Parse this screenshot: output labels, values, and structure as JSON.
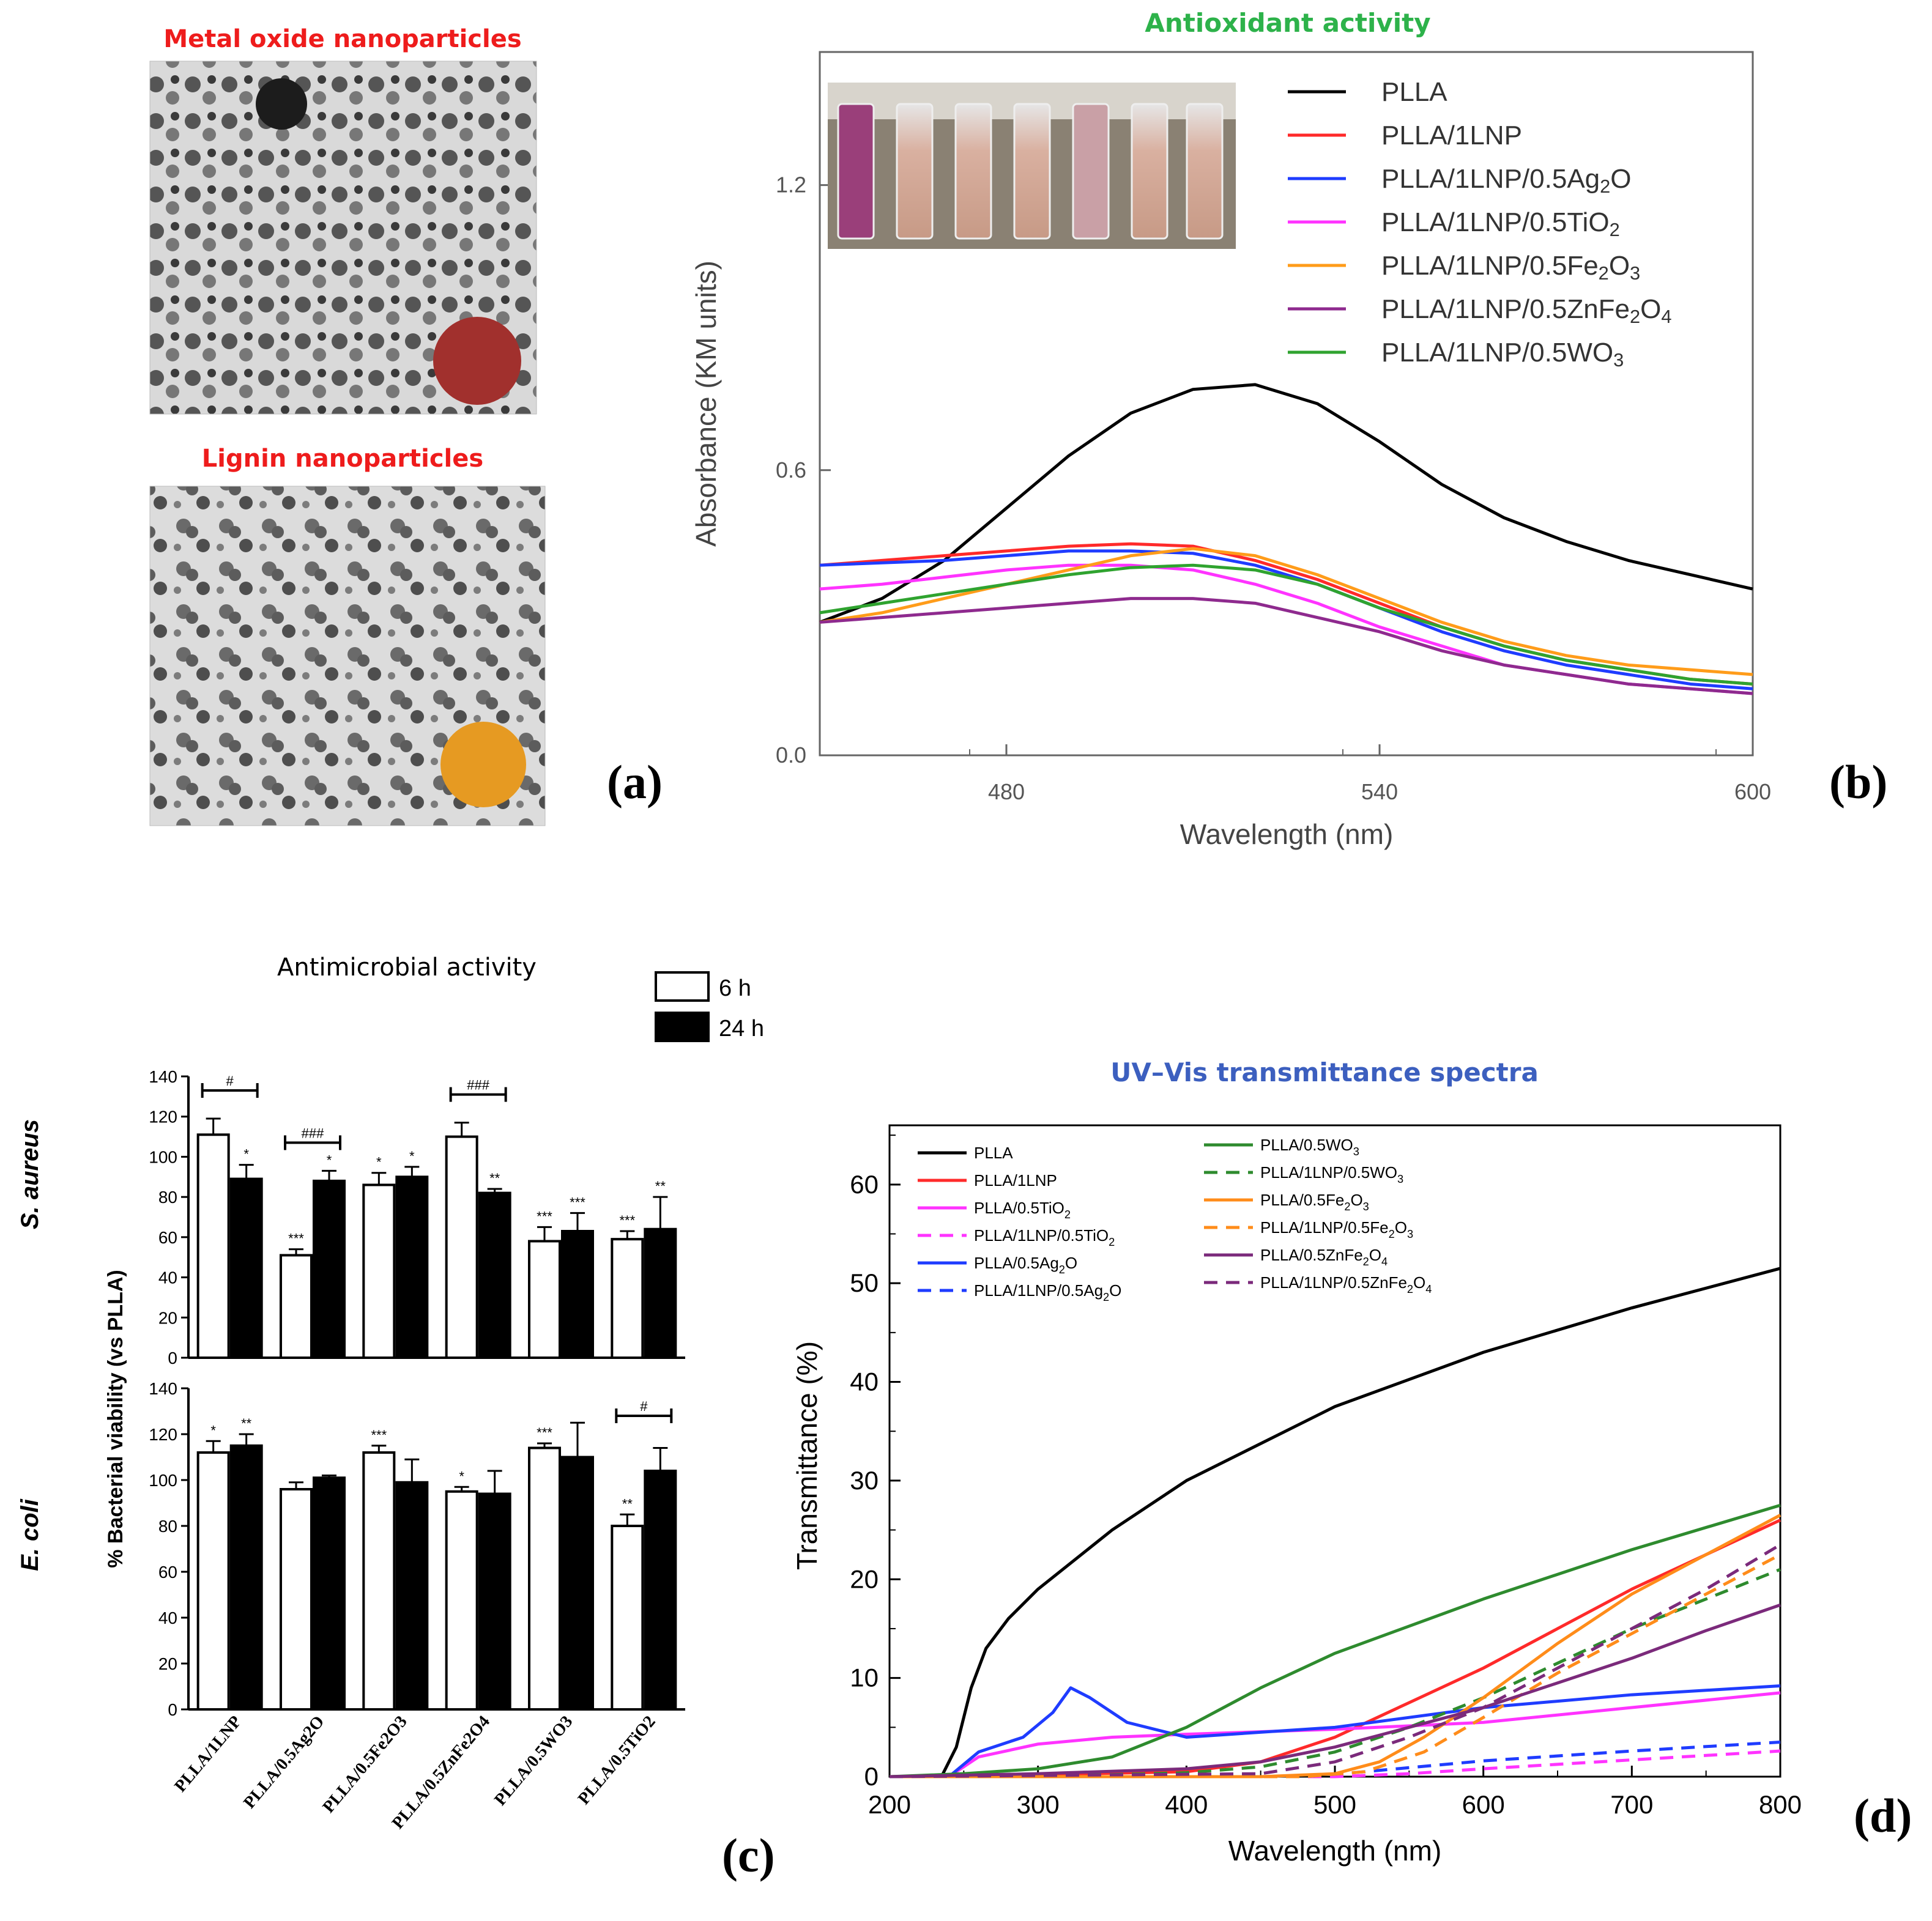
{
  "panel_a": {
    "letter": "(a)",
    "top_title": "Metal oxide nanoparticles",
    "bottom_title": "Lignin nanoparticles",
    "top_dot_color": "#a1302d",
    "bottom_dot_color": "#e69a22"
  },
  "chart_data": [
    {
      "id": "b",
      "type": "line",
      "letter": "(b)",
      "title": "Antioxidant activity",
      "xlabel": "Wavelength (nm)",
      "ylabel": "Absorbance (KM units)",
      "xlim": [
        450,
        600
      ],
      "ylim": [
        0.0,
        1.48
      ],
      "xticks": [
        "480",
        "540",
        "600"
      ],
      "xtick_values": [
        480,
        540,
        600
      ],
      "yticks": [
        "0.0",
        "0.6",
        "1.2"
      ],
      "ytick_values": [
        0.0,
        0.6,
        1.2
      ],
      "legend_position": "top-right",
      "inset": "cuvette photo",
      "x": [
        450,
        460,
        470,
        480,
        490,
        500,
        510,
        520,
        530,
        540,
        550,
        560,
        570,
        580,
        590,
        600
      ],
      "series": [
        {
          "name": "PLLA",
          "label": "PLLA",
          "sub": "",
          "tail": "",
          "color": "#000000",
          "values": [
            0.28,
            0.33,
            0.41,
            0.52,
            0.63,
            0.72,
            0.77,
            0.78,
            0.74,
            0.66,
            0.57,
            0.5,
            0.45,
            0.41,
            0.38,
            0.35
          ]
        },
        {
          "name": "PLLA/1LNP",
          "label": "PLLA/1LNP",
          "sub": "",
          "tail": "",
          "color": "#ff2a2a",
          "values": [
            0.4,
            0.41,
            0.42,
            0.43,
            0.44,
            0.445,
            0.44,
            0.41,
            0.37,
            0.32,
            0.27,
            0.23,
            0.2,
            0.18,
            0.16,
            0.15
          ]
        },
        {
          "name": "PLLA/1LNP/0.5Ag2O",
          "label": "PLLA/1LNP/0.5Ag",
          "sub": "2",
          "tail": "O",
          "color": "#1f3cff",
          "values": [
            0.4,
            0.405,
            0.41,
            0.42,
            0.43,
            0.43,
            0.425,
            0.4,
            0.36,
            0.31,
            0.26,
            0.22,
            0.19,
            0.17,
            0.15,
            0.14
          ]
        },
        {
          "name": "PLLA/1LNP/0.5TiO2",
          "label": "PLLA/1LNP/0.5TiO",
          "sub": "2",
          "tail": "",
          "color": "#ff33ff",
          "values": [
            0.35,
            0.36,
            0.375,
            0.39,
            0.4,
            0.4,
            0.39,
            0.36,
            0.32,
            0.27,
            0.23,
            0.19,
            0.17,
            0.15,
            0.14,
            0.13
          ]
        },
        {
          "name": "PLLA/1LNP/0.5Fe2O3",
          "label": "PLLA/1LNP/0.5Fe",
          "sub": "2",
          "tail": "O",
          "sub2": "3",
          "color": "#ff9c1a",
          "values": [
            0.28,
            0.3,
            0.33,
            0.36,
            0.39,
            0.42,
            0.435,
            0.42,
            0.38,
            0.33,
            0.28,
            0.24,
            0.21,
            0.19,
            0.18,
            0.17
          ]
        },
        {
          "name": "PLLA/1LNP/0.5ZnFe2O4",
          "label": "PLLA/1LNP/0.5ZnFe",
          "sub": "2",
          "tail": "O",
          "sub2": "4",
          "color": "#8e2a8e",
          "values": [
            0.28,
            0.29,
            0.3,
            0.31,
            0.32,
            0.33,
            0.33,
            0.32,
            0.29,
            0.26,
            0.22,
            0.19,
            0.17,
            0.15,
            0.14,
            0.13
          ]
        },
        {
          "name": "PLLA/1LNP/0.5WO3",
          "label": "PLLA/1LNP/0.5WO",
          "sub": "3",
          "tail": "",
          "color": "#2fa32f",
          "values": [
            0.3,
            0.32,
            0.34,
            0.36,
            0.38,
            0.395,
            0.4,
            0.39,
            0.36,
            0.31,
            0.27,
            0.23,
            0.2,
            0.18,
            0.16,
            0.15
          ]
        }
      ]
    },
    {
      "id": "c",
      "type": "bar",
      "letter": "(c)",
      "title": "Antimicrobial activity",
      "ylabel": "% Bacterial viability (vs PLLA)",
      "ylim": [
        0,
        140
      ],
      "yticks": [
        "0",
        "20",
        "40",
        "60",
        "80",
        "100",
        "120",
        "140"
      ],
      "ytick_values": [
        0,
        20,
        40,
        60,
        80,
        100,
        120,
        140
      ],
      "legend": [
        "6 h",
        "24 h"
      ],
      "legend_position": "top-right",
      "categories": [
        "PLLA/1LNP",
        "PLLA/0.5Ag2O",
        "PLLA/0.5Fe2O3",
        "PLLA/0.5ZnFe2O4",
        "PLLA/0.5WO3",
        "PLLA/0.5TiO2"
      ],
      "panels": [
        {
          "species": "S. aureus",
          "series": [
            {
              "name": "6 h",
              "values": [
                111,
                51,
                86,
                110,
                58,
                59
              ],
              "errors": [
                8,
                3,
                6,
                7,
                7,
                4
              ],
              "sig": [
                "",
                "***",
                "*",
                "",
                "***",
                "***"
              ]
            },
            {
              "name": "24 h",
              "values": [
                89,
                88,
                90,
                82,
                63,
                64
              ],
              "errors": [
                7,
                5,
                5,
                2,
                9,
                16
              ],
              "sig": [
                "*",
                "*",
                "*",
                "**",
                "***",
                "**"
              ]
            }
          ],
          "brackets": [
            {
              "category": 0,
              "label": "#"
            },
            {
              "category": 1,
              "label": "###"
            },
            {
              "category": 3,
              "label": "###"
            }
          ]
        },
        {
          "species": "E. coli",
          "series": [
            {
              "name": "6 h",
              "values": [
                112,
                96,
                112,
                95,
                114,
                80
              ],
              "errors": [
                5,
                3,
                3,
                2,
                2,
                5
              ],
              "sig": [
                "*",
                "",
                "***",
                "*",
                "***",
                "**"
              ]
            },
            {
              "name": "24 h",
              "values": [
                115,
                101,
                99,
                94,
                110,
                104
              ],
              "errors": [
                5,
                1,
                10,
                10,
                15,
                10
              ],
              "sig": [
                "**",
                "",
                "",
                "",
                "",
                ""
              ]
            }
          ],
          "brackets": [
            {
              "category": 5,
              "label": "#"
            }
          ]
        }
      ]
    },
    {
      "id": "d",
      "type": "line",
      "letter": "(d)",
      "title": "UV–Vis transmittance spectra",
      "xlabel": "Wavelength (nm)",
      "ylabel": "Transmittance (%)",
      "xlim": [
        200,
        800
      ],
      "ylim": [
        0,
        66
      ],
      "xticks": [
        "200",
        "300",
        "400",
        "500",
        "600",
        "700",
        "800"
      ],
      "xtick_values": [
        200,
        300,
        400,
        500,
        600,
        700,
        800
      ],
      "yticks": [
        "0",
        "10",
        "20",
        "30",
        "40",
        "50",
        "60"
      ],
      "ytick_values": [
        0,
        10,
        20,
        30,
        40,
        50,
        60
      ],
      "legend_position": "top-left",
      "series": [
        {
          "name": "PLLA",
          "label": "PLLA",
          "sub": "",
          "tail": "",
          "color": "#000000",
          "dash": false,
          "x": [
            200,
            235,
            245,
            255,
            265,
            280,
            300,
            350,
            400,
            500,
            600,
            700,
            800
          ],
          "values": [
            0,
            0,
            3,
            9,
            13,
            16,
            19,
            25,
            30,
            37.5,
            43,
            47.5,
            51.5
          ]
        },
        {
          "name": "PLLA/1LNP",
          "label": "PLLA/1LNP",
          "sub": "",
          "tail": "",
          "color": "#ff2a2a",
          "dash": false,
          "x": [
            200,
            300,
            400,
            450,
            500,
            550,
            600,
            650,
            700,
            750,
            800
          ],
          "values": [
            0,
            0.2,
            0.5,
            1.5,
            4,
            7.5,
            11,
            15,
            19,
            22.5,
            26
          ]
        },
        {
          "name": "PLLA/0.5TiO2",
          "label": "PLLA/0.5TiO",
          "sub": "2",
          "tail": "",
          "color": "#ff33ff",
          "dash": false,
          "x": [
            200,
            240,
            260,
            300,
            350,
            400,
            500,
            600,
            700,
            800
          ],
          "values": [
            0,
            0,
            2,
            3.3,
            4,
            4.3,
            4.8,
            5.5,
            7,
            8.5
          ]
        },
        {
          "name": "PLLA/1LNP/0.5TiO2",
          "label": "PLLA/1LNP/0.5TiO",
          "sub": "2",
          "tail": "",
          "color": "#ff33ff",
          "dash": true,
          "x": [
            200,
            500,
            550,
            600,
            700,
            800
          ],
          "values": [
            0,
            0,
            0.3,
            0.8,
            1.7,
            2.6
          ]
        },
        {
          "name": "PLLA/0.5Ag2O",
          "label": "PLLA/0.5Ag",
          "sub": "2",
          "tail": "O",
          "color": "#1f3cff",
          "dash": false,
          "x": [
            200,
            240,
            260,
            290,
            310,
            322,
            335,
            360,
            400,
            500,
            600,
            700,
            800
          ],
          "values": [
            0,
            0,
            2.5,
            4,
            6.5,
            9,
            8,
            5.5,
            4,
            5,
            7,
            8.3,
            9.2
          ]
        },
        {
          "name": "PLLA/1LNP/0.5Ag2O",
          "label": "PLLA/1LNP/0.5Ag",
          "sub": "2",
          "tail": "O",
          "color": "#1f3cff",
          "dash": true,
          "x": [
            200,
            480,
            520,
            600,
            700,
            800
          ],
          "values": [
            0,
            0,
            0.5,
            1.6,
            2.6,
            3.5
          ]
        },
        {
          "name": "PLLA/0.5WO3",
          "label": "PLLA/0.5WO",
          "sub": "3",
          "tail": "",
          "color": "#2e8b2e",
          "dash": false,
          "x": [
            200,
            250,
            300,
            350,
            400,
            450,
            500,
            600,
            700,
            800
          ],
          "values": [
            0,
            0.3,
            0.8,
            2,
            5,
            9,
            12.5,
            18,
            23,
            27.5
          ]
        },
        {
          "name": "PLLA/1LNP/0.5WO3",
          "label": "PLLA/1LNP/0.5WO",
          "sub": "3",
          "tail": "",
          "color": "#2e8b2e",
          "dash": true,
          "x": [
            200,
            350,
            400,
            450,
            500,
            550,
            600,
            650,
            700,
            750,
            800
          ],
          "values": [
            0,
            0.2,
            0.4,
            1,
            2.5,
            5,
            8,
            11.5,
            15,
            18,
            21
          ]
        },
        {
          "name": "PLLA/0.5Fe2O3",
          "label": "PLLA/0.5Fe",
          "sub": "2",
          "tail": "O",
          "sub2": "3",
          "color": "#ff8c1a",
          "dash": false,
          "x": [
            200,
            450,
            500,
            530,
            560,
            600,
            650,
            700,
            750,
            800
          ],
          "values": [
            0,
            0,
            0.3,
            1.5,
            4,
            8,
            13.5,
            18.5,
            22.5,
            26.5
          ]
        },
        {
          "name": "PLLA/1LNP/0.5Fe2O3",
          "label": "PLLA/1LNP/0.5Fe",
          "sub": "2",
          "tail": "O",
          "sub2": "3",
          "color": "#ff8c1a",
          "dash": true,
          "x": [
            200,
            480,
            520,
            560,
            600,
            650,
            700,
            750,
            800
          ],
          "values": [
            0,
            0,
            0.5,
            2.5,
            6,
            10.5,
            14.5,
            18.5,
            22.5
          ]
        },
        {
          "name": "PLLA/0.5ZnFe2O4",
          "label": "PLLA/0.5ZnFe",
          "sub": "2",
          "tail": "O",
          "sub2": "4",
          "color": "#7b2a7b",
          "dash": false,
          "x": [
            200,
            300,
            400,
            450,
            500,
            550,
            600,
            650,
            700,
            750,
            800
          ],
          "values": [
            0,
            0.3,
            0.8,
            1.5,
            3,
            5,
            7,
            9.5,
            12,
            14.8,
            17.4
          ]
        },
        {
          "name": "PLLA/1LNP/0.5ZnFe2O4",
          "label": "PLLA/1LNP/0.5ZnFe",
          "sub": "2",
          "tail": "O",
          "sub2": "4",
          "color": "#7b2a7b",
          "dash": true,
          "x": [
            200,
            450,
            500,
            550,
            600,
            650,
            700,
            750,
            800
          ],
          "values": [
            0,
            0.3,
            1.5,
            4,
            7,
            11,
            15,
            19,
            23.5
          ]
        }
      ]
    }
  ]
}
